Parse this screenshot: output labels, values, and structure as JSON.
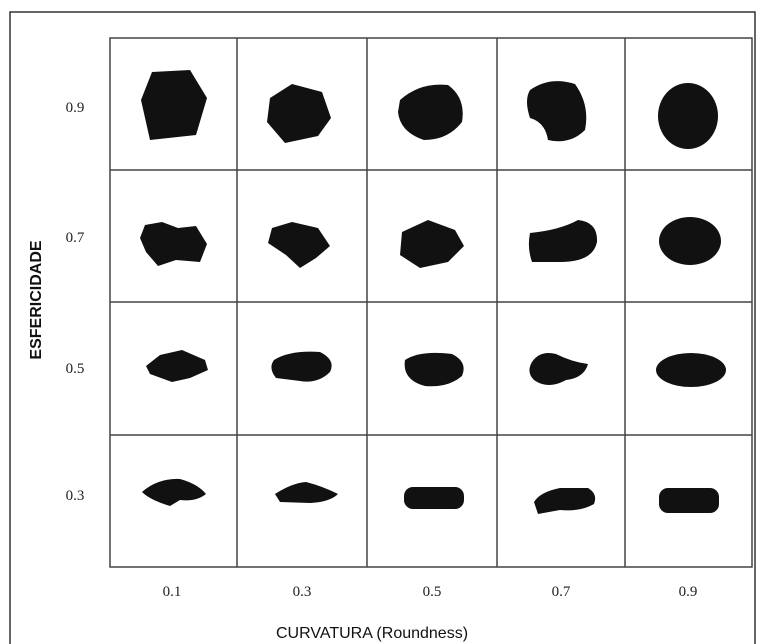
{
  "y_axis": {
    "label": "ESFERICIDADE",
    "levels": [
      "0.9",
      "0.7",
      "0.5",
      "0.3"
    ]
  },
  "x_axis": {
    "label": "CURVATURA (Roundness)",
    "levels": [
      "0.1",
      "0.3",
      "0.5",
      "0.7",
      "0.9"
    ]
  }
}
